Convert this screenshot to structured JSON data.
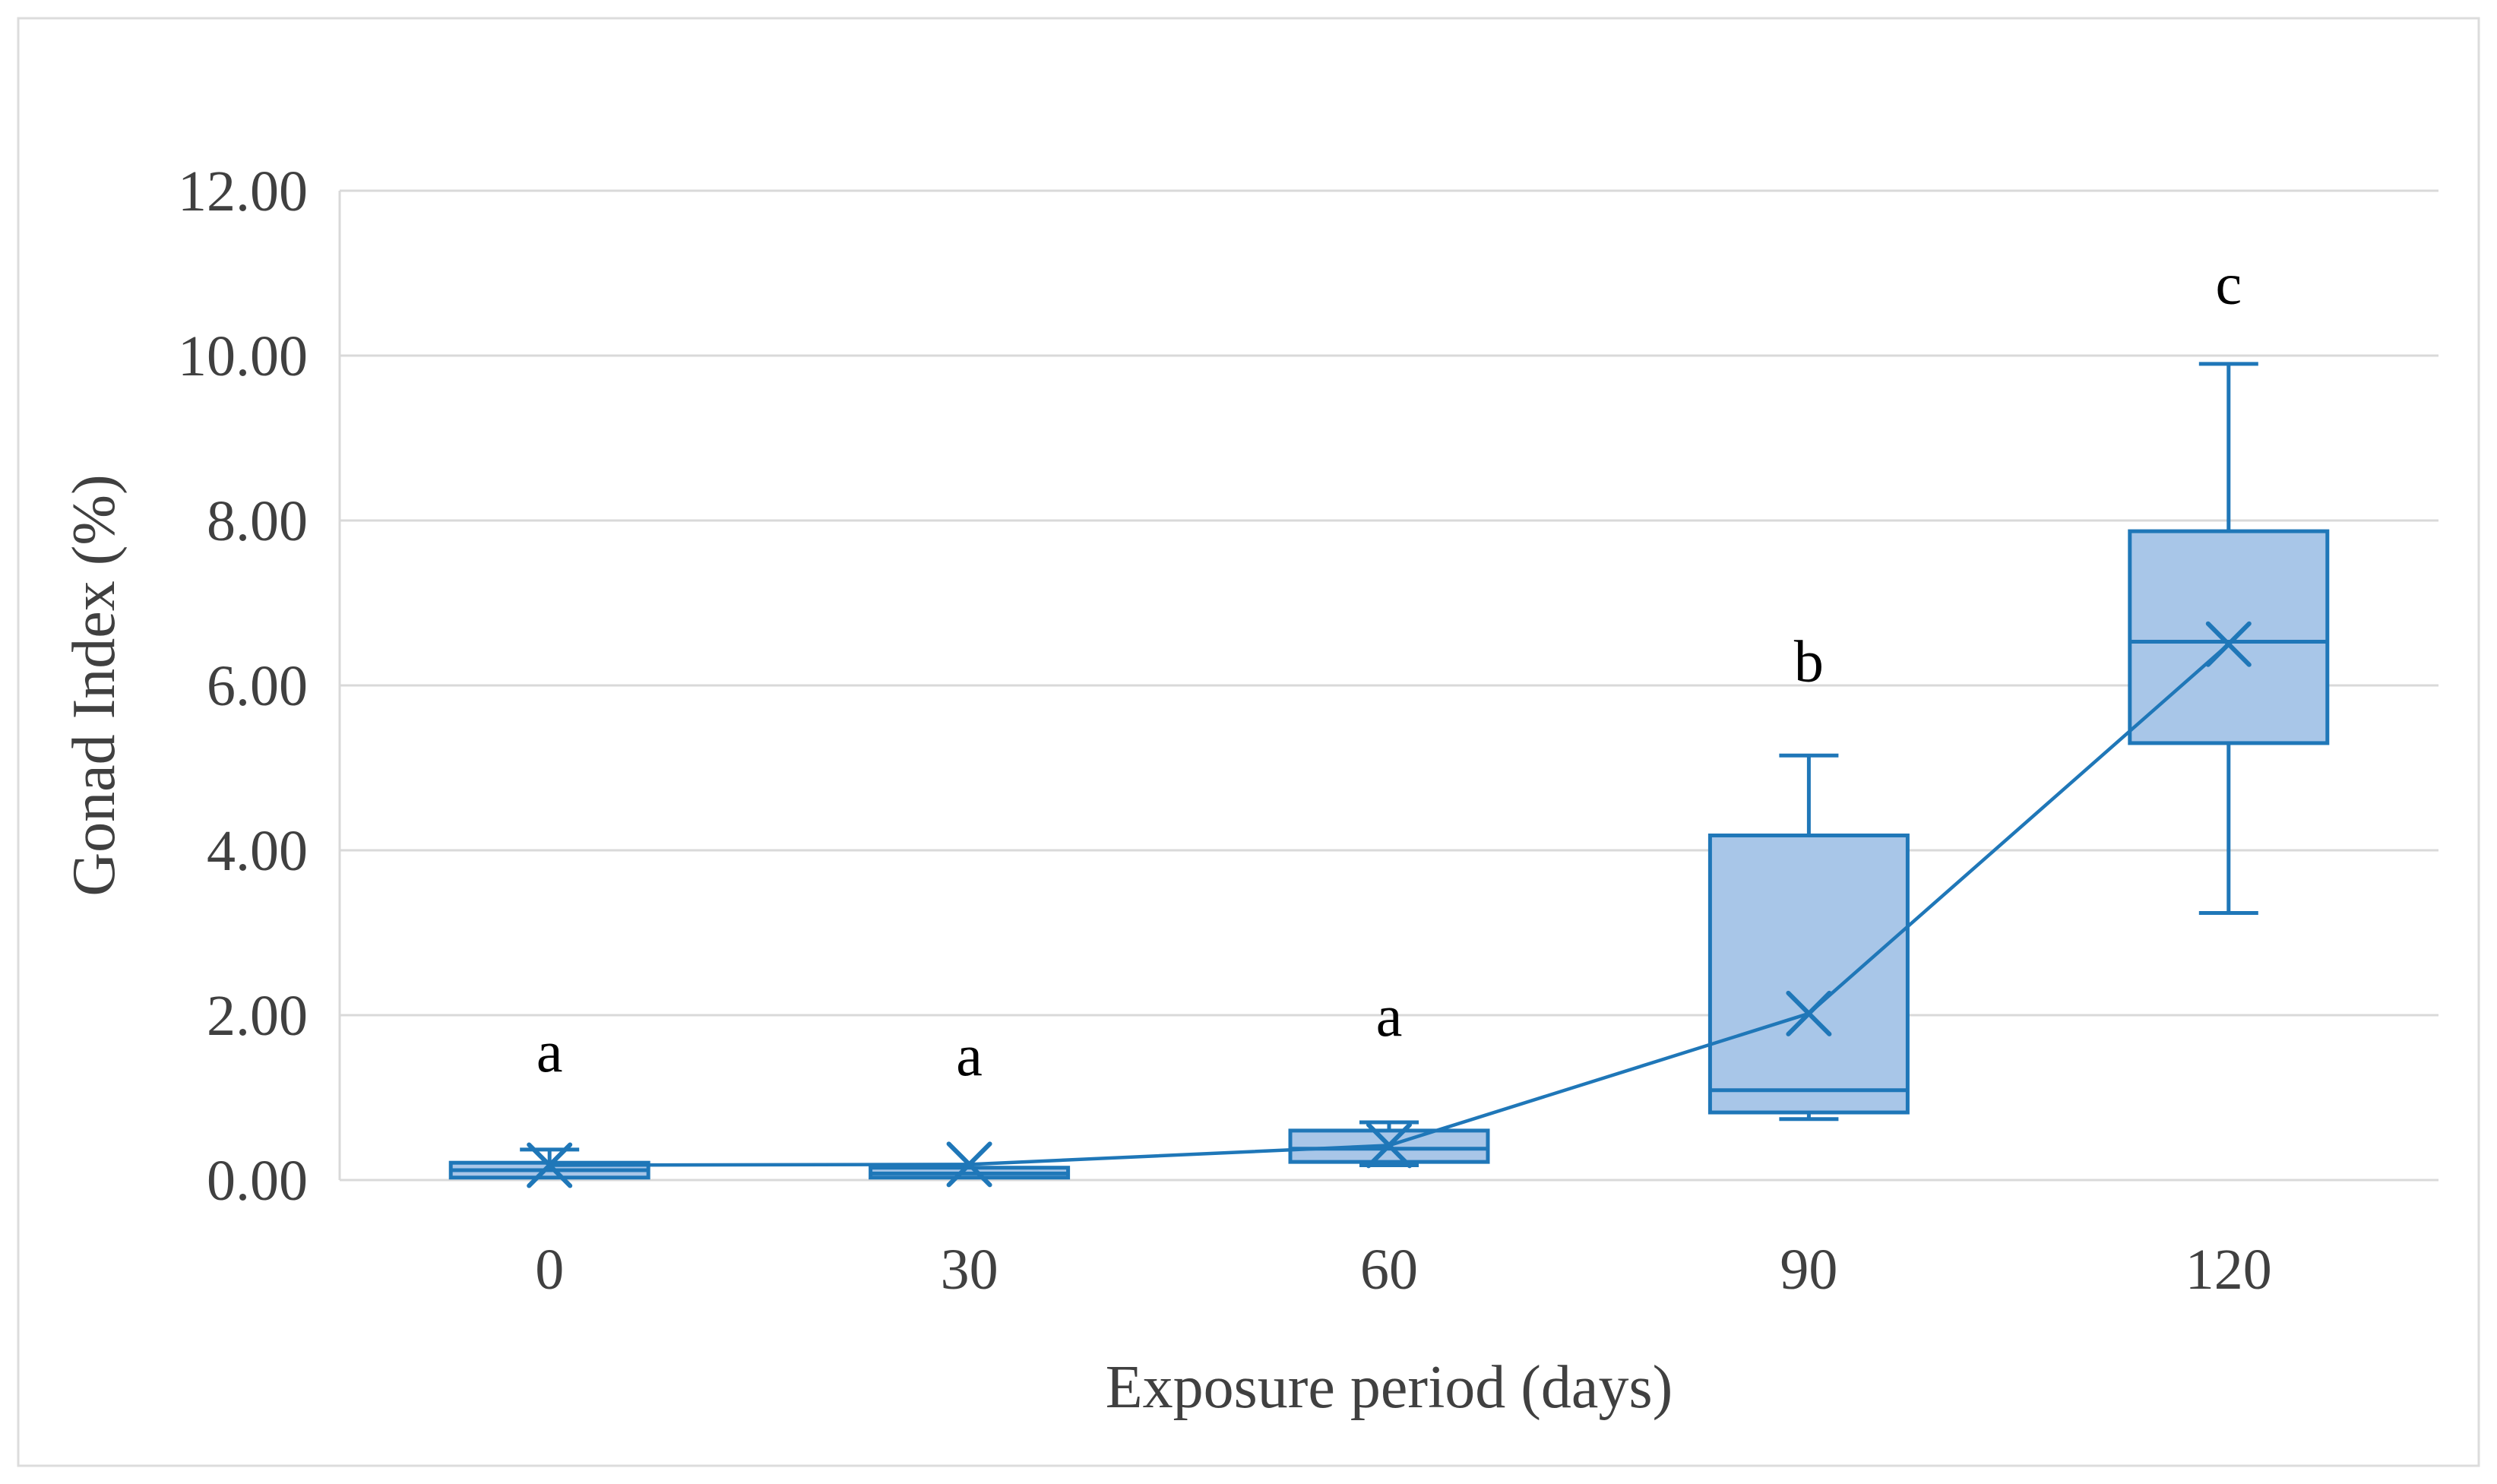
{
  "figure": {
    "kind": "box-plot-figure"
  },
  "chart_data": {
    "type": "box",
    "title": "",
    "xlabel": "Exposure period (days)",
    "ylabel": "Gonad Index (%)",
    "categories": [
      "0",
      "30",
      "60",
      "90",
      "120"
    ],
    "y_ticks": [
      "0.00",
      "2.00",
      "4.00",
      "6.00",
      "8.00",
      "10.00",
      "12.00"
    ],
    "ylim": [
      0,
      12
    ],
    "grid": true,
    "legend": "none",
    "boxes": [
      {
        "category": "0",
        "whisker_low": 0.03,
        "q1": 0.03,
        "median": 0.12,
        "q3": 0.21,
        "whisker_high": 0.37,
        "mean": 0.18,
        "sig_letter": "a",
        "letter_y": 1.32
      },
      {
        "category": "30",
        "whisker_low": 0.03,
        "q1": 0.03,
        "median": 0.08,
        "q3": 0.15,
        "whisker_high": 0.15,
        "mean": 0.19,
        "sig_letter": "a",
        "letter_y": 1.27
      },
      {
        "category": "60",
        "whisker_low": 0.18,
        "q1": 0.22,
        "median": 0.38,
        "q3": 0.6,
        "whisker_high": 0.7,
        "mean": 0.42,
        "sig_letter": "a",
        "letter_y": 1.75
      },
      {
        "category": "90",
        "whisker_low": 0.74,
        "q1": 0.82,
        "median": 1.09,
        "q3": 4.18,
        "whisker_high": 5.15,
        "mean": 2.02,
        "sig_letter": "b",
        "letter_y": 6.05
      },
      {
        "category": "120",
        "whisker_low": 3.24,
        "q1": 5.3,
        "median": 6.53,
        "q3": 7.87,
        "whisker_high": 9.9,
        "mean": 6.5,
        "sig_letter": "c",
        "letter_y": 10.63
      }
    ],
    "mean_line": [
      0.18,
      0.19,
      0.42,
      2.02,
      6.5
    ],
    "colors": {
      "box_fill": "#A8C6E8",
      "box_stroke": "#1F77B8",
      "mean_line": "#1F77B8",
      "gridline": "#D9D9D9",
      "frame": "#DCDCDC",
      "tick_text": "#404040",
      "axis_title_text": "#404040",
      "letter_text": "#000000",
      "background": "#FFFFFF"
    }
  }
}
